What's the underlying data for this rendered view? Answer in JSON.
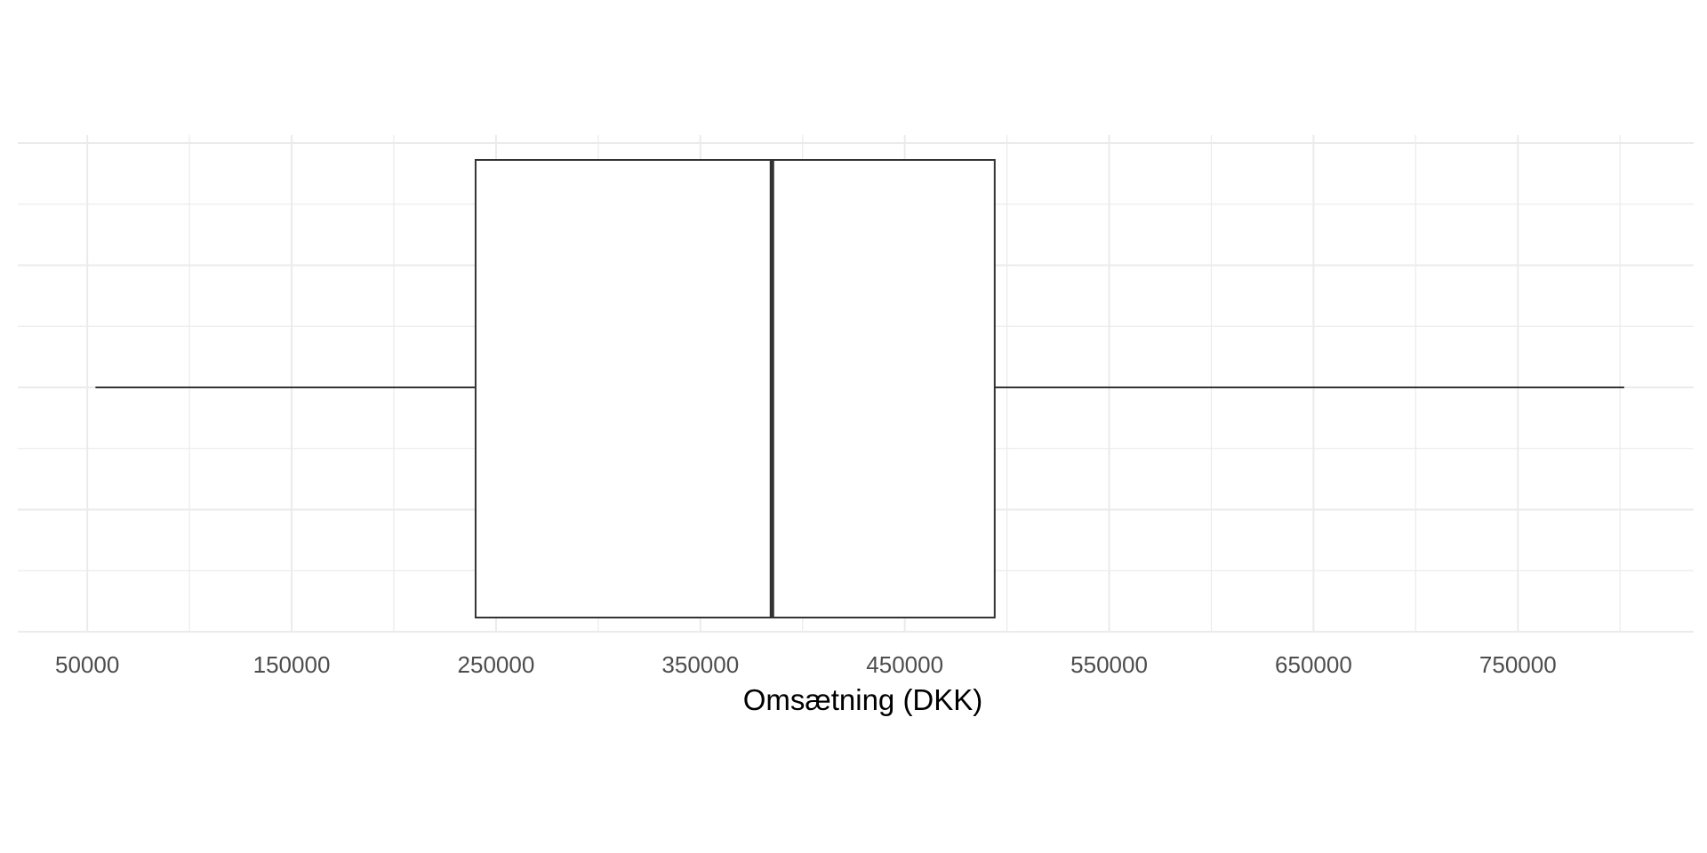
{
  "chart_data": {
    "type": "boxplot",
    "title": "",
    "xlabel": "Omsætning (DKK)",
    "ylabel": "",
    "xlim": [
      16000,
      836000
    ],
    "x_ticks": [
      50000,
      150000,
      250000,
      350000,
      450000,
      550000,
      650000,
      750000
    ],
    "x_tick_labels": [
      "50000",
      "150000",
      "250000",
      "350000",
      "450000",
      "550000",
      "650000",
      "750000"
    ],
    "grid": true,
    "legend": "none",
    "box": {
      "min": 54000,
      "q1": 240000,
      "median": 385000,
      "q3": 494000,
      "max": 802000
    },
    "colors": {
      "background": "#ffffff",
      "grid": "#ebebeb",
      "box_outline": "#333333",
      "box_fill": "#ffffff",
      "tick_text": "#4d4d4d",
      "title_text": "#000000"
    }
  }
}
